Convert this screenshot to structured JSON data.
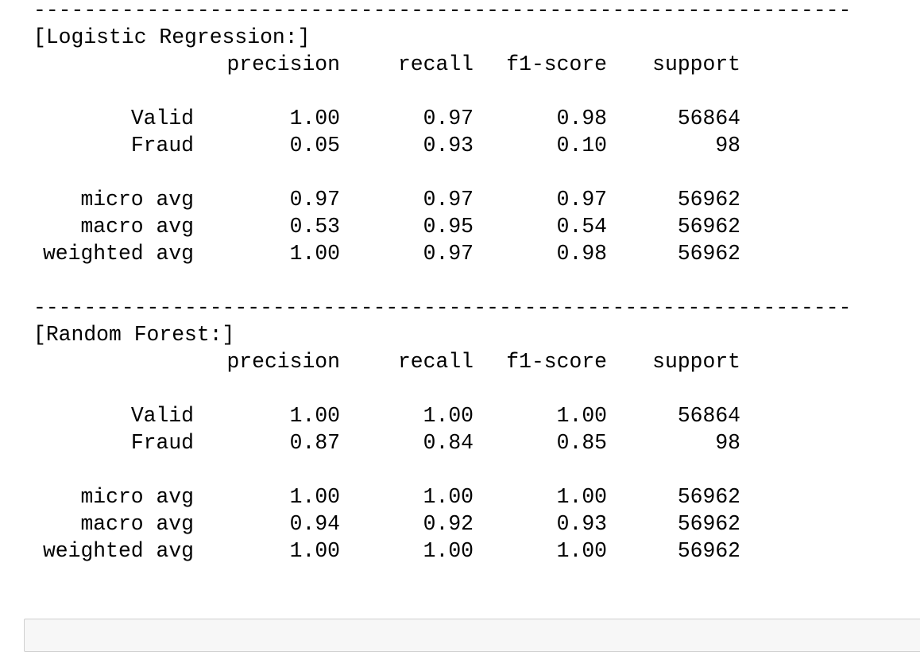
{
  "output": {
    "separator": "-----------------------------------------------------------------",
    "reports": [
      {
        "title": "[Logistic Regression:]",
        "header": [
          "precision",
          "recall",
          "f1-score",
          "support"
        ],
        "class_rows": [
          {
            "label": "Valid",
            "values": [
              "1.00",
              "0.97",
              "0.98",
              "56864"
            ]
          },
          {
            "label": "Fraud",
            "values": [
              "0.05",
              "0.93",
              "0.10",
              "98"
            ]
          }
        ],
        "avg_rows": [
          {
            "label": "micro avg",
            "values": [
              "0.97",
              "0.97",
              "0.97",
              "56962"
            ]
          },
          {
            "label": "macro avg",
            "values": [
              "0.53",
              "0.95",
              "0.54",
              "56962"
            ]
          },
          {
            "label": "weighted avg",
            "values": [
              "1.00",
              "0.97",
              "0.98",
              "56962"
            ]
          }
        ]
      },
      {
        "title": "[Random Forest:]",
        "header": [
          "precision",
          "recall",
          "f1-score",
          "support"
        ],
        "class_rows": [
          {
            "label": "Valid",
            "values": [
              "1.00",
              "1.00",
              "1.00",
              "56864"
            ]
          },
          {
            "label": "Fraud",
            "values": [
              "0.87",
              "0.84",
              "0.85",
              "98"
            ]
          }
        ],
        "avg_rows": [
          {
            "label": "micro avg",
            "values": [
              "1.00",
              "1.00",
              "1.00",
              "56962"
            ]
          },
          {
            "label": "macro avg",
            "values": [
              "0.94",
              "0.92",
              "0.93",
              "56962"
            ]
          },
          {
            "label": "weighted avg",
            "values": [
              "1.00",
              "1.00",
              "1.00",
              "56962"
            ]
          }
        ]
      }
    ]
  }
}
